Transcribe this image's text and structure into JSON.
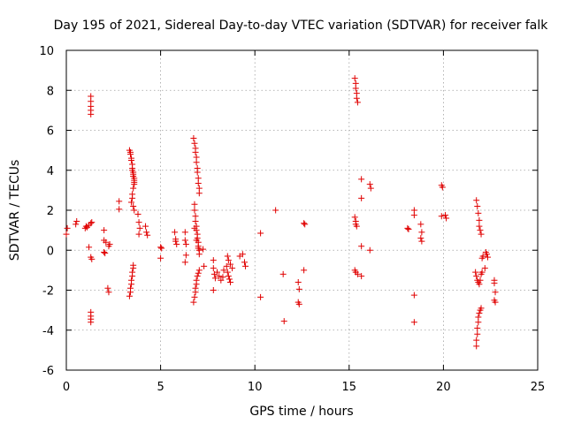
{
  "chart_data": {
    "type": "scatter",
    "title": "Day 195 of 2021, Sidereal Day-to-day VTEC variation (SDTVAR) for receiver falk",
    "xlabel": "GPS time / hours",
    "ylabel": "SDTVAR / TECUs",
    "xlim": [
      0,
      25
    ],
    "ylim": [
      -6,
      10
    ],
    "xticks": [
      0,
      5,
      10,
      15,
      20,
      25
    ],
    "yticks": [
      -6,
      -4,
      -2,
      0,
      2,
      4,
      6,
      8,
      10
    ],
    "xtick_labels": [
      "0",
      "5",
      "10",
      "15",
      "20",
      "25"
    ],
    "ytick_labels": [
      "-6",
      "-4",
      "-2",
      "0",
      "2",
      "4",
      "6",
      "8",
      "10"
    ],
    "grid": true,
    "marker": "+",
    "color": "#e00000",
    "series": [
      {
        "name": "SDTVAR",
        "points": [
          [
            0.0,
            0.8
          ],
          [
            0.05,
            1.1
          ],
          [
            0.5,
            1.3
          ],
          [
            0.55,
            1.45
          ],
          [
            1.0,
            1.1
          ],
          [
            1.05,
            1.2
          ],
          [
            1.1,
            1.15
          ],
          [
            1.2,
            1.25
          ],
          [
            1.3,
            1.35
          ],
          [
            1.35,
            1.4
          ],
          [
            1.3,
            7.7
          ],
          [
            1.3,
            7.45
          ],
          [
            1.3,
            7.2
          ],
          [
            1.3,
            7.0
          ],
          [
            1.3,
            6.8
          ],
          [
            1.2,
            0.15
          ],
          [
            1.3,
            -0.35
          ],
          [
            1.35,
            -0.45
          ],
          [
            1.3,
            -3.1
          ],
          [
            1.3,
            -3.3
          ],
          [
            1.3,
            -3.45
          ],
          [
            1.3,
            -3.6
          ],
          [
            2.0,
            1.0
          ],
          [
            2.0,
            0.5
          ],
          [
            2.1,
            0.4
          ],
          [
            2.0,
            -0.1
          ],
          [
            2.05,
            -0.15
          ],
          [
            2.2,
            -1.9
          ],
          [
            2.25,
            -2.1
          ],
          [
            2.3,
            0.3
          ],
          [
            2.25,
            0.2
          ],
          [
            2.8,
            2.45
          ],
          [
            2.8,
            2.05
          ],
          [
            3.35,
            5.0
          ],
          [
            3.4,
            4.8
          ],
          [
            3.45,
            4.5
          ],
          [
            3.5,
            4.3
          ],
          [
            3.5,
            4.1
          ],
          [
            3.55,
            3.9
          ],
          [
            3.55,
            3.7
          ],
          [
            3.6,
            3.5
          ],
          [
            3.6,
            3.3
          ],
          [
            3.55,
            3.1
          ],
          [
            3.5,
            2.8
          ],
          [
            3.5,
            2.6
          ],
          [
            3.45,
            2.4
          ],
          [
            3.55,
            2.2
          ],
          [
            3.6,
            2.0
          ],
          [
            3.4,
            4.9
          ],
          [
            3.45,
            4.6
          ],
          [
            3.5,
            4.0
          ],
          [
            3.55,
            3.8
          ],
          [
            3.6,
            3.6
          ],
          [
            3.6,
            3.4
          ],
          [
            3.35,
            -2.3
          ],
          [
            3.4,
            -2.1
          ],
          [
            3.4,
            -1.9
          ],
          [
            3.45,
            -1.7
          ],
          [
            3.45,
            -1.5
          ],
          [
            3.5,
            -1.3
          ],
          [
            3.5,
            -1.1
          ],
          [
            3.55,
            -0.9
          ],
          [
            3.55,
            -0.75
          ],
          [
            3.8,
            1.8
          ],
          [
            3.85,
            1.4
          ],
          [
            3.9,
            1.1
          ],
          [
            3.85,
            0.8
          ],
          [
            4.2,
            1.2
          ],
          [
            4.25,
            0.9
          ],
          [
            4.3,
            0.75
          ],
          [
            5.0,
            0.15
          ],
          [
            5.05,
            0.1
          ],
          [
            5.0,
            -0.4
          ],
          [
            5.75,
            0.9
          ],
          [
            5.8,
            0.55
          ],
          [
            5.8,
            0.45
          ],
          [
            5.85,
            0.3
          ],
          [
            6.3,
            0.9
          ],
          [
            6.3,
            0.5
          ],
          [
            6.35,
            0.3
          ],
          [
            6.35,
            -0.25
          ],
          [
            6.3,
            -0.6
          ],
          [
            6.75,
            5.6
          ],
          [
            6.8,
            5.35
          ],
          [
            6.85,
            5.1
          ],
          [
            6.85,
            4.9
          ],
          [
            6.9,
            4.65
          ],
          [
            6.9,
            4.4
          ],
          [
            6.95,
            4.1
          ],
          [
            6.95,
            3.9
          ],
          [
            7.0,
            3.6
          ],
          [
            7.0,
            3.35
          ],
          [
            7.05,
            3.1
          ],
          [
            7.05,
            2.85
          ],
          [
            6.8,
            2.3
          ],
          [
            6.8,
            2.0
          ],
          [
            6.85,
            1.7
          ],
          [
            6.85,
            1.45
          ],
          [
            6.9,
            1.2
          ],
          [
            6.9,
            1.0
          ],
          [
            6.95,
            0.8
          ],
          [
            6.95,
            0.6
          ],
          [
            7.0,
            0.4
          ],
          [
            7.0,
            0.2
          ],
          [
            7.05,
            0.0
          ],
          [
            7.05,
            -0.2
          ],
          [
            6.8,
            1.1
          ],
          [
            6.9,
            0.5
          ],
          [
            7.0,
            0.1
          ],
          [
            6.75,
            -2.6
          ],
          [
            6.8,
            -2.35
          ],
          [
            6.85,
            -2.1
          ],
          [
            6.85,
            -1.9
          ],
          [
            6.9,
            -1.7
          ],
          [
            6.9,
            -1.5
          ],
          [
            6.95,
            -1.3
          ],
          [
            7.0,
            -1.15
          ],
          [
            7.05,
            -1.0
          ],
          [
            7.25,
            0.05
          ],
          [
            7.3,
            -0.8
          ],
          [
            7.8,
            -0.5
          ],
          [
            7.8,
            -0.9
          ],
          [
            7.85,
            -1.2
          ],
          [
            7.9,
            -1.4
          ],
          [
            7.8,
            -2.0
          ],
          [
            8.0,
            -1.1
          ],
          [
            8.1,
            -1.3
          ],
          [
            8.2,
            -1.5
          ],
          [
            8.3,
            -1.35
          ],
          [
            8.35,
            -1.0
          ],
          [
            8.5,
            -0.8
          ],
          [
            8.55,
            -1.1
          ],
          [
            8.6,
            -1.3
          ],
          [
            8.65,
            -1.45
          ],
          [
            8.7,
            -1.6
          ],
          [
            8.55,
            -0.3
          ],
          [
            8.6,
            -0.5
          ],
          [
            8.7,
            -0.7
          ],
          [
            8.8,
            -0.9
          ],
          [
            9.2,
            -0.3
          ],
          [
            9.35,
            -0.2
          ],
          [
            9.45,
            -0.6
          ],
          [
            9.5,
            -0.8
          ],
          [
            10.3,
            0.85
          ],
          [
            10.3,
            -2.35
          ],
          [
            11.1,
            2.0
          ],
          [
            11.5,
            -1.2
          ],
          [
            11.55,
            -3.55
          ],
          [
            12.3,
            -1.6
          ],
          [
            12.35,
            -1.95
          ],
          [
            12.3,
            -2.6
          ],
          [
            12.35,
            -2.7
          ],
          [
            12.6,
            1.35
          ],
          [
            12.65,
            1.3
          ],
          [
            12.6,
            -1.0
          ],
          [
            15.3,
            8.6
          ],
          [
            15.35,
            8.35
          ],
          [
            15.35,
            8.1
          ],
          [
            15.4,
            7.85
          ],
          [
            15.4,
            7.6
          ],
          [
            15.45,
            7.4
          ],
          [
            15.3,
            1.65
          ],
          [
            15.35,
            1.45
          ],
          [
            15.35,
            1.3
          ],
          [
            15.4,
            1.2
          ],
          [
            15.3,
            -1.0
          ],
          [
            15.35,
            -1.1
          ],
          [
            15.45,
            -1.2
          ],
          [
            15.65,
            3.55
          ],
          [
            15.65,
            2.6
          ],
          [
            15.65,
            0.2
          ],
          [
            15.65,
            -1.3
          ],
          [
            16.1,
            3.3
          ],
          [
            16.15,
            3.1
          ],
          [
            16.1,
            0.0
          ],
          [
            18.1,
            1.1
          ],
          [
            18.15,
            1.05
          ],
          [
            18.45,
            2.0
          ],
          [
            18.45,
            1.75
          ],
          [
            18.45,
            -2.25
          ],
          [
            18.45,
            -3.6
          ],
          [
            18.8,
            1.3
          ],
          [
            18.85,
            0.9
          ],
          [
            18.8,
            0.6
          ],
          [
            18.85,
            0.45
          ],
          [
            19.9,
            3.25
          ],
          [
            19.95,
            3.15
          ],
          [
            19.9,
            1.7
          ],
          [
            20.1,
            1.75
          ],
          [
            20.15,
            1.6
          ],
          [
            21.75,
            2.5
          ],
          [
            21.8,
            2.2
          ],
          [
            21.85,
            1.85
          ],
          [
            21.9,
            1.5
          ],
          [
            21.9,
            1.2
          ],
          [
            21.95,
            1.0
          ],
          [
            22.0,
            0.8
          ],
          [
            21.7,
            -1.1
          ],
          [
            21.75,
            -1.3
          ],
          [
            21.8,
            -1.5
          ],
          [
            21.85,
            -1.6
          ],
          [
            21.9,
            -1.7
          ],
          [
            21.95,
            -1.5
          ],
          [
            22.0,
            -1.2
          ],
          [
            22.05,
            -1.1
          ],
          [
            21.75,
            -4.8
          ],
          [
            21.75,
            -4.5
          ],
          [
            21.8,
            -4.2
          ],
          [
            21.8,
            -3.9
          ],
          [
            21.85,
            -3.6
          ],
          [
            21.85,
            -3.35
          ],
          [
            21.9,
            -3.15
          ],
          [
            21.95,
            -3.0
          ],
          [
            22.0,
            -2.9
          ],
          [
            22.05,
            -0.4
          ],
          [
            22.1,
            -0.3
          ],
          [
            22.2,
            -0.9
          ],
          [
            22.25,
            -0.1
          ],
          [
            22.3,
            -0.2
          ],
          [
            22.35,
            -0.35
          ],
          [
            22.7,
            -1.5
          ],
          [
            22.7,
            -1.65
          ],
          [
            22.75,
            -2.1
          ],
          [
            22.7,
            -2.5
          ],
          [
            22.75,
            -2.6
          ]
        ]
      }
    ]
  }
}
